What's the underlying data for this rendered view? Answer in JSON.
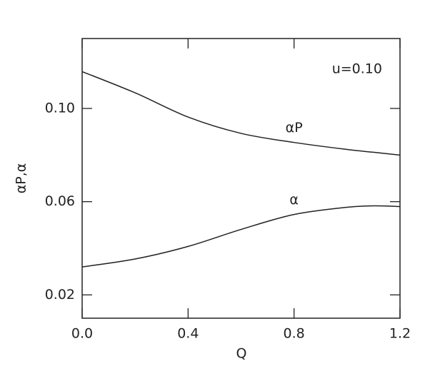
{
  "chart_data": {
    "type": "line",
    "x_label": "Q",
    "y_label": "αP,α",
    "annotation": "u=0.10",
    "x": [
      0,
      0.2,
      0.4,
      0.6,
      0.8,
      1.0,
      1.1,
      1.2
    ],
    "series": [
      {
        "name": "αP",
        "color": "#222222",
        "values": [
          0.1158,
          0.1067,
          0.0963,
          0.0893,
          0.0854,
          0.0824,
          0.0812,
          0.08
        ]
      },
      {
        "name": "α",
        "color": "#222222",
        "values": [
          0.032,
          0.0354,
          0.0408,
          0.0481,
          0.0545,
          0.0576,
          0.0582,
          0.0579
        ]
      }
    ],
    "xlim": [
      0,
      1.2
    ],
    "ylim": [
      0.01,
      0.13
    ],
    "xticks": [
      {
        "value": 0,
        "label": "0.0"
      },
      0.4,
      0.8,
      {
        "value": 1.2,
        "label": "1.2"
      }
    ],
    "yticks": [
      0.02,
      0.06,
      {
        "value": 0.1,
        "label": "0.10"
      }
    ]
  }
}
